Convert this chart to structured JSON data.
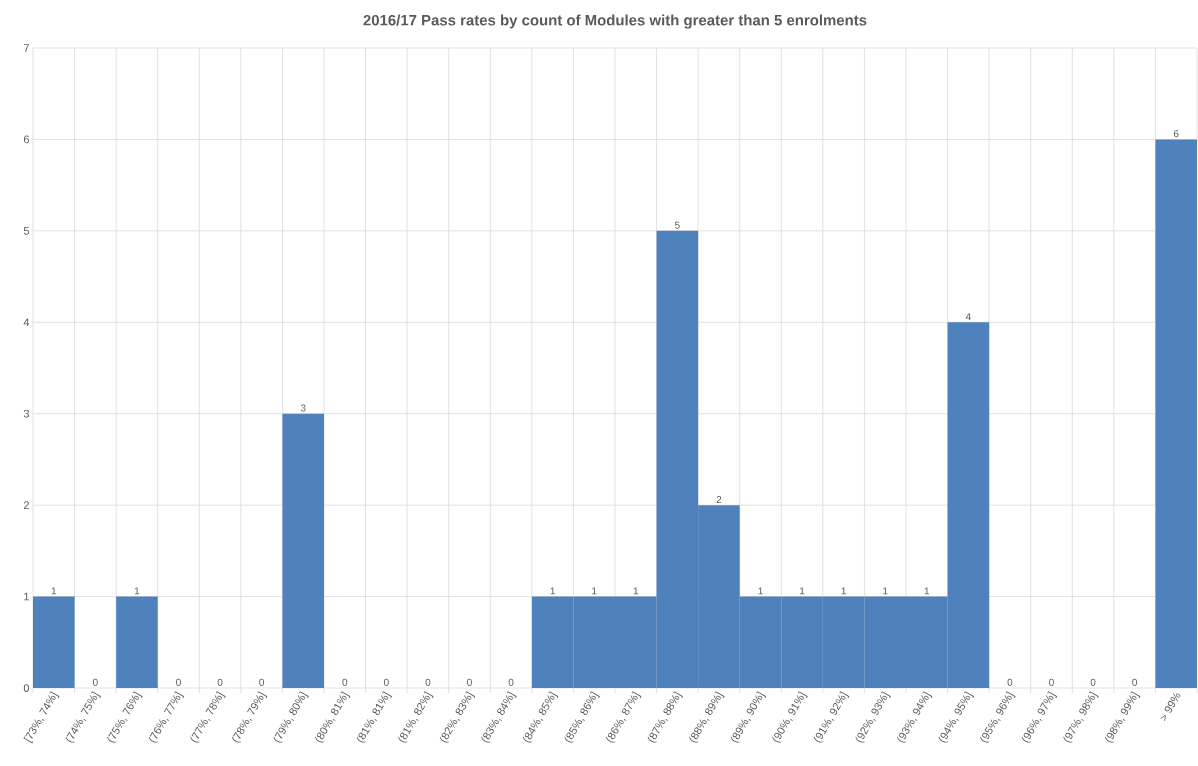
{
  "chart_data": {
    "type": "bar",
    "title": "2016/17 Pass rates by count of Modules with greater than 5 enrolments",
    "categories": [
      "[73%, 74%]",
      "(74%, 75%]",
      "(75%, 76%]",
      "(76%, 77%]",
      "(77%, 78%]",
      "(78%, 79%]",
      "(79%, 80%]",
      "(80%, 81%]",
      "(81%, 81%]",
      "(81%, 82%]",
      "(82%, 83%]",
      "(83%, 84%]",
      "(84%, 85%]",
      "(85%, 86%]",
      "(86%, 87%]",
      "(87%, 88%]",
      "(88%, 89%]",
      "(89%, 90%]",
      "(90%, 91%]",
      "(91%, 92%]",
      "(92%, 93%]",
      "(93%, 94%]",
      "(94%, 95%]",
      "(95%, 96%]",
      "(96%, 97%]",
      "(97%, 98%]",
      "(98%, 99%]",
      "> 99%"
    ],
    "values": [
      1,
      0,
      1,
      0,
      0,
      0,
      3,
      0,
      0,
      0,
      0,
      0,
      1,
      1,
      1,
      5,
      2,
      1,
      1,
      1,
      1,
      1,
      4,
      0,
      0,
      0,
      0,
      6
    ],
    "color": "#4f81bd",
    "ylim": [
      0,
      7
    ],
    "yticks": [
      0,
      1,
      2,
      3,
      4,
      5,
      6,
      7
    ],
    "grid": true,
    "data_labels": true
  }
}
